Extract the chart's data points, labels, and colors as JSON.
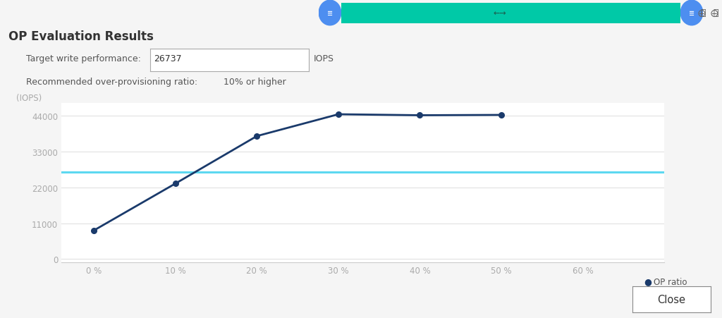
{
  "title": "OP Evaluation Results",
  "target_write_perf_label": "Target write performance:",
  "target_write_perf_value": "26737",
  "target_write_perf_unit": "IOPS",
  "recommended_label": "Recommended over-provisioning ratio:",
  "recommended_value": "10% or higher",
  "x_values": [
    0,
    10,
    20,
    30,
    40,
    50
  ],
  "y_values": [
    8800,
    23200,
    37800,
    44500,
    44200,
    44300
  ],
  "reference_line_y": 26737,
  "y_ticks": [
    0,
    11000,
    22000,
    33000,
    44000
  ],
  "y_label": "(IOPS)",
  "x_ticks": [
    0,
    10,
    20,
    30,
    40,
    50,
    60
  ],
  "x_tick_labels": [
    "0 %",
    "10 %",
    "20 %",
    "30 %",
    "40 %",
    "50 %",
    "60 %"
  ],
  "line_color": "#1a3a6b",
  "reference_line_color": "#5dd8f0",
  "bg_color": "#f5f5f5",
  "plot_bg_color": "#ffffff",
  "legend_label": "OP ratio",
  "legend_marker_color": "#1a3a6b",
  "close_button_label": "Close",
  "toolbar_color": "#00c9a7",
  "toolbar_button_color": "#4d8ef0",
  "ylim_max": 48000
}
